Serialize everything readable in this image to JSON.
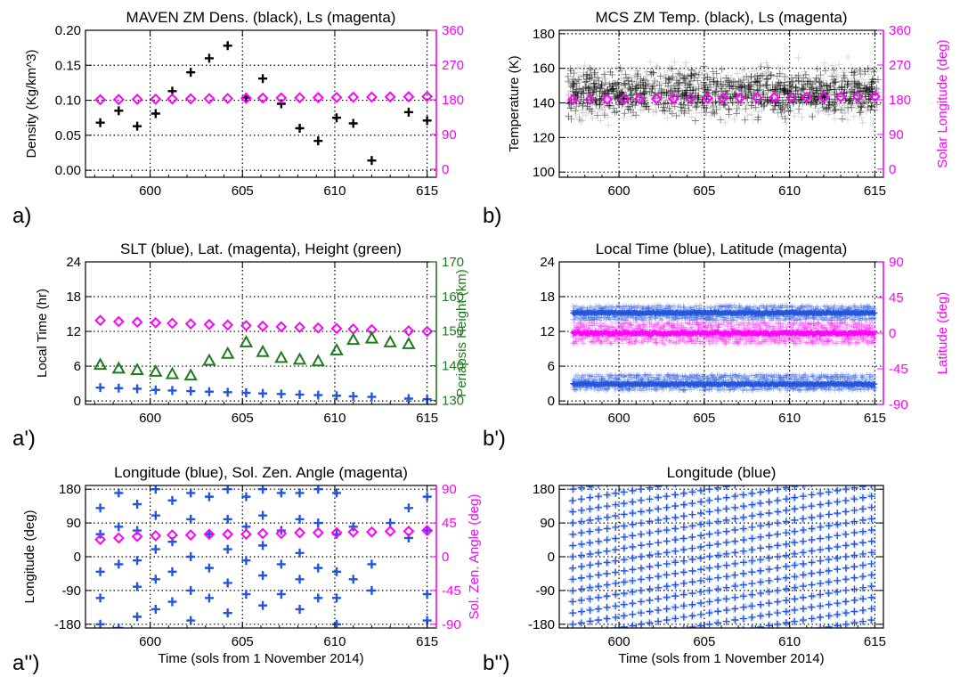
{
  "figure": {
    "xlabel": "Time (sols from 1 November 2014)"
  },
  "chart_data": [
    {
      "id": "a",
      "panel_label": "a)",
      "type": "scatter",
      "title": "MAVEN ZM Dens. (black), Ls (magenta)",
      "xlabel": "",
      "ylabel": "Density (Kg/km^3)",
      "y2label": "",
      "xlim": [
        596.5,
        615.5
      ],
      "ylim": [
        -0.01,
        0.2
      ],
      "y2lim": [
        -21,
        360
      ],
      "xticks": [
        600,
        605,
        610,
        615
      ],
      "yticks": [
        0.0,
        0.05,
        0.1,
        0.15,
        0.2
      ],
      "ytick_labels": [
        "0.00",
        "0.05",
        "0.10",
        "0.15",
        "0.20"
      ],
      "y2ticks": [
        0,
        90,
        180,
        270,
        360
      ],
      "y2tick_labels": [
        "0",
        "90",
        "180",
        "270",
        "360"
      ],
      "y2color": "#ff00ff",
      "grid": true,
      "series": [
        {
          "axis": "y",
          "marker": "plus",
          "color": "#000000",
          "x": [
            597.3,
            598.3,
            599.3,
            600.3,
            601.2,
            602.2,
            603.2,
            604.2,
            605.2,
            606.1,
            607.1,
            608.1,
            609.1,
            610.1,
            611.0,
            612.0,
            614.0,
            615.0
          ],
          "y": [
            0.068,
            0.085,
            0.063,
            0.081,
            0.113,
            0.14,
            0.16,
            0.178,
            0.104,
            0.131,
            0.095,
            0.06,
            0.042,
            0.075,
            0.067,
            0.014,
            0.083,
            0.071
          ]
        },
        {
          "axis": "y2",
          "marker": "diamond",
          "color": "#ff00ff",
          "x": [
            597.3,
            598.3,
            599.3,
            600.3,
            601.2,
            602.2,
            603.2,
            604.2,
            605.2,
            606.1,
            607.1,
            608.1,
            609.1,
            610.1,
            611.0,
            612.0,
            613.0,
            614.0,
            615.0
          ],
          "y": [
            180.2,
            180.6,
            181.1,
            181.5,
            182.0,
            182.4,
            182.9,
            183.3,
            183.8,
            184.2,
            184.7,
            185.1,
            185.6,
            186.0,
            186.5,
            186.9,
            187.4,
            187.8,
            188.3
          ]
        }
      ]
    },
    {
      "id": "b",
      "panel_label": "b)",
      "type": "scatter",
      "title": "MCS ZM Temp. (black), Ls (magenta)",
      "xlabel": "",
      "ylabel": "Temperature (K)",
      "y2label": "Solar Longitude (deg)",
      "xlim": [
        596.5,
        615.5
      ],
      "ylim": [
        97,
        182
      ],
      "y2lim": [
        -21,
        360
      ],
      "xticks": [
        600,
        605,
        610,
        615
      ],
      "yticks": [
        100,
        120,
        140,
        160,
        180
      ],
      "ytick_labels": [
        "100",
        "120",
        "140",
        "160",
        "180"
      ],
      "y2ticks": [
        0,
        90,
        180,
        270,
        360
      ],
      "y2tick_labels": [
        "0",
        "90",
        "180",
        "270",
        "360"
      ],
      "y2color": "#ff00ff",
      "grid": true,
      "cloud": {
        "marker": "plus",
        "color": "#000000",
        "x_range": [
          597,
          615.2
        ],
        "y_mean": 146,
        "y_spread": 18,
        "core_spread": 6,
        "count": 1500
      },
      "series": [
        {
          "axis": "y2",
          "marker": "diamond",
          "color": "#ff00ff",
          "x": [
            597.3,
            598.3,
            599.3,
            600.3,
            601.2,
            602.2,
            603.2,
            604.2,
            605.2,
            606.1,
            607.1,
            608.1,
            609.1,
            610.1,
            611.0,
            612.0,
            613.0,
            614.0,
            615.0
          ],
          "y": [
            180.2,
            180.6,
            181.1,
            181.5,
            182.0,
            182.4,
            182.9,
            183.3,
            183.8,
            184.2,
            184.7,
            185.1,
            185.6,
            186.0,
            186.5,
            186.9,
            187.4,
            187.8,
            188.3
          ]
        }
      ]
    },
    {
      "id": "a1",
      "panel_label": "a')",
      "type": "scatter",
      "title": "SLT (blue), Lat. (magenta), Height (green)",
      "xlabel": "",
      "ylabel": "Local Time (hr)",
      "y2label": "Periapsis Height (km)",
      "xlim": [
        596.5,
        615.5
      ],
      "ylim": [
        -0.6,
        24
      ],
      "y2lim": [
        128.8,
        170
      ],
      "xticks": [
        600,
        605,
        610,
        615
      ],
      "yticks": [
        0,
        6,
        12,
        18,
        24
      ],
      "ytick_labels": [
        "0",
        "6",
        "12",
        "18",
        "24"
      ],
      "y2ticks": [
        130,
        140,
        150,
        160,
        170
      ],
      "y2tick_labels": [
        "130",
        "140",
        "150",
        "160",
        "170"
      ],
      "y2color": "#1e7a1e",
      "grid": true,
      "series": [
        {
          "axis": "y",
          "marker": "plus",
          "color": "#2255dd",
          "x": [
            597.3,
            598.3,
            599.3,
            600.3,
            601.2,
            602.2,
            603.2,
            604.2,
            605.2,
            606.1,
            607.1,
            608.1,
            609.1,
            610.1,
            611.0,
            612.0,
            614.0,
            615.0
          ],
          "y": [
            2.3,
            2.2,
            2.1,
            1.9,
            1.8,
            1.7,
            1.6,
            1.5,
            1.4,
            1.3,
            1.2,
            1.1,
            1.0,
            0.9,
            0.8,
            0.7,
            0.4,
            0.3
          ]
        },
        {
          "axis": "y",
          "marker": "diamond",
          "color": "#ff00ff",
          "x": [
            597.3,
            598.3,
            599.3,
            600.3,
            601.2,
            602.2,
            603.2,
            604.2,
            605.2,
            606.1,
            607.1,
            608.1,
            609.1,
            610.1,
            611.0,
            612.0,
            614.0,
            615.0
          ],
          "y": [
            13.9,
            13.7,
            13.6,
            13.5,
            13.4,
            13.3,
            13.2,
            13.1,
            13.0,
            12.9,
            12.8,
            12.7,
            12.6,
            12.5,
            12.4,
            12.3,
            12.1,
            12.0
          ]
        },
        {
          "axis": "y2",
          "marker": "triangle",
          "color": "#1e7a1e",
          "x": [
            597.3,
            598.3,
            599.3,
            600.3,
            601.2,
            602.2,
            603.2,
            604.2,
            605.2,
            606.1,
            607.1,
            608.1,
            609.1,
            610.1,
            611.0,
            612.0,
            613.0,
            614.0
          ],
          "y": [
            140.3,
            139.2,
            138.8,
            138.3,
            137.6,
            137.2,
            141.5,
            143.5,
            146.8,
            144.0,
            142.3,
            141.8,
            141.3,
            144.5,
            147.5,
            147.9,
            146.8,
            146.3
          ]
        }
      ]
    },
    {
      "id": "b1",
      "panel_label": "b')",
      "type": "scatter",
      "title": "Local Time (blue), Latitude (magenta)",
      "xlabel": "",
      "ylabel": "",
      "y2label": "Latitude (deg)",
      "xlim": [
        596.5,
        615.5
      ],
      "ylim": [
        -0.6,
        24
      ],
      "y2lim": [
        -90,
        90
      ],
      "xticks": [
        600,
        605,
        610,
        615
      ],
      "yticks": [
        0,
        6,
        12,
        18,
        24
      ],
      "ytick_labels": [
        "0",
        "6",
        "12",
        "18",
        "24"
      ],
      "y2ticks": [
        -90,
        -45,
        0,
        45,
        90
      ],
      "y2tick_labels": [
        "-90",
        "-45",
        "0",
        "45",
        "90"
      ],
      "y2color": "#ff00ff",
      "grid": true,
      "bands": [
        {
          "color": "#2255dd",
          "axis": "y",
          "y_center": 15.2,
          "y_halfwidth": 1.3,
          "core": 15.2,
          "x_range": [
            597.3,
            615
          ]
        },
        {
          "color": "#2255dd",
          "axis": "y",
          "y_center": 3.2,
          "y_halfwidth": 1.4,
          "core": 2.9,
          "x_range": [
            597.3,
            615
          ]
        },
        {
          "color": "#ff00ff",
          "axis": "y2",
          "y_center": 0,
          "y_halfwidth": 14,
          "core": 0,
          "x_range": [
            597.3,
            615
          ]
        }
      ]
    },
    {
      "id": "a2",
      "panel_label": "a'')",
      "type": "scatter",
      "title": "Longitude (blue), Sol. Zen. Angle (magenta)",
      "xlabel": "Time (sols from 1 November 2014)",
      "ylabel": "Longitude (deg)",
      "y2label": "Sol. Zen. Angle (deg)",
      "xlim": [
        596.5,
        615.5
      ],
      "ylim": [
        -190,
        190
      ],
      "y2lim": [
        -95,
        95
      ],
      "xticks": [
        600,
        605,
        610,
        615
      ],
      "yticks": [
        -180,
        -90,
        0,
        90,
        180
      ],
      "ytick_labels": [
        "-180",
        "-90",
        "0",
        "90",
        "180"
      ],
      "y2ticks": [
        -90,
        -45,
        0,
        45,
        90
      ],
      "y2tick_labels": [
        "-90",
        "-45",
        "0",
        "45",
        "90"
      ],
      "y2color": "#ff00ff",
      "grid": true,
      "series": [
        {
          "axis": "y",
          "marker": "plus",
          "color": "#2255dd",
          "x": [
            597.3,
            597.3,
            597.3,
            597.3,
            597.3,
            598.3,
            598.3,
            598.3,
            598.3,
            599.3,
            599.3,
            599.3,
            599.3,
            599.3,
            600.3,
            600.3,
            600.3,
            600.3,
            600.3,
            601.2,
            601.2,
            601.2,
            601.2,
            602.2,
            602.2,
            602.2,
            602.2,
            602.2,
            603.2,
            603.2,
            603.2,
            603.2,
            604.2,
            604.2,
            604.2,
            604.2,
            604.2,
            605.2,
            605.2,
            605.2,
            605.2,
            606.1,
            606.1,
            606.1,
            606.1,
            606.1,
            607.1,
            607.1,
            607.1,
            607.1,
            608.1,
            608.1,
            608.1,
            608.1,
            608.1,
            609.1,
            609.1,
            609.1,
            609.1,
            610.1,
            610.1,
            610.1,
            610.1,
            610.1,
            611.0,
            611.0,
            612.0,
            612.0,
            613.0,
            614.0,
            614.0,
            615.0,
            615.0,
            615.0,
            615.0
          ],
          "y": [
            130,
            60,
            -40,
            -110,
            -180,
            170,
            80,
            -20,
            -190,
            140,
            70,
            -10,
            -80,
            -160,
            180,
            110,
            20,
            -60,
            -140,
            150,
            40,
            -40,
            -120,
            170,
            100,
            0,
            -90,
            -170,
            160,
            60,
            -30,
            -110,
            180,
            100,
            20,
            -70,
            -150,
            160,
            80,
            -10,
            -100,
            180,
            110,
            30,
            -50,
            -130,
            170,
            70,
            -20,
            -100,
            170,
            100,
            10,
            -60,
            -140,
            180,
            90,
            -30,
            -110,
            170,
            60,
            -40,
            -110,
            -180,
            80,
            -60,
            -20,
            -90,
            90,
            130,
            50,
            160,
            70,
            -100,
            -170
          ]
        },
        {
          "axis": "y2",
          "marker": "diamond",
          "color": "#ff00ff",
          "x": [
            597.3,
            598.3,
            599.3,
            600.3,
            601.2,
            602.2,
            603.2,
            604.2,
            605.2,
            606.1,
            607.1,
            608.1,
            609.1,
            610.1,
            611.0,
            612.0,
            613.0,
            614.0,
            615.0
          ],
          "y": [
            23,
            25,
            27,
            28,
            29,
            29,
            30,
            30,
            30,
            31,
            31,
            32,
            32,
            32,
            33,
            33,
            34,
            34,
            35
          ]
        }
      ]
    },
    {
      "id": "b2",
      "panel_label": "b'')",
      "type": "scatter",
      "title": "Longitude (blue)",
      "xlabel": "Time (sols from 1 November 2014)",
      "ylabel": "",
      "y2label": "",
      "xlim": [
        596.5,
        615.5
      ],
      "ylim": [
        -190,
        190
      ],
      "xticks": [
        600,
        605,
        610,
        615
      ],
      "yticks": [
        -180,
        -90,
        0,
        90,
        180
      ],
      "ytick_labels": [
        "-180",
        "-90",
        "0",
        "90",
        "180"
      ],
      "grid": true,
      "lattice": {
        "color": "#2255dd",
        "x_start": 597.3,
        "x_end": 615.2,
        "x_step": 0.5,
        "lon_step": 30,
        "drift_per_sol": 7.5
      }
    }
  ]
}
